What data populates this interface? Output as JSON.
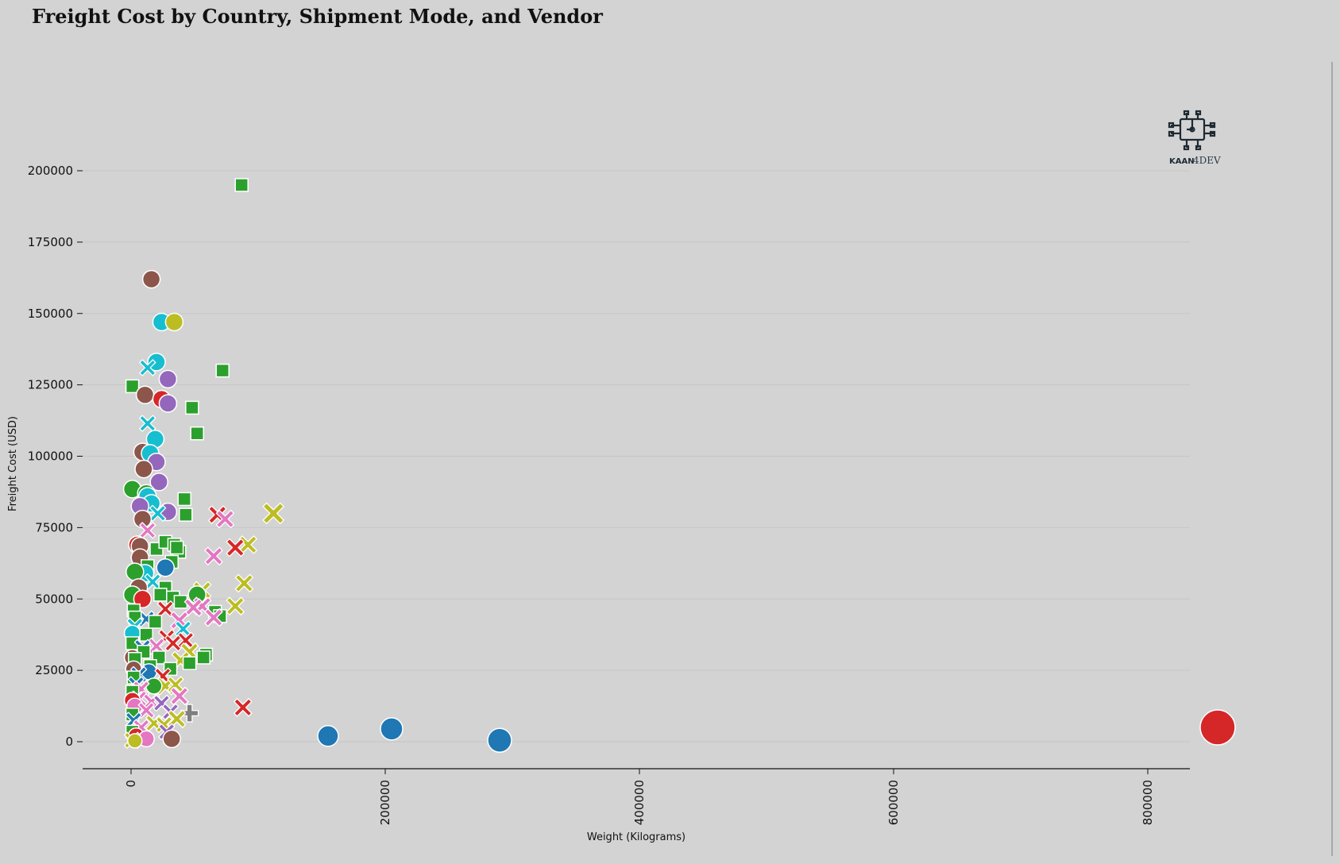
{
  "chart_data": {
    "type": "scatter",
    "title": "Freight Cost by Country, Shipment Mode, and Vendor",
    "xlabel": "Weight (Kilograms)",
    "ylabel": "Freight Cost (USD)",
    "xlim": [
      -20000,
      900000
    ],
    "ylim": [
      -9000,
      210000
    ],
    "x_ticks": [
      "0",
      "200000",
      "400000",
      "600000",
      "800000"
    ],
    "x_tick_values": [
      0,
      200000,
      400000,
      600000,
      800000
    ],
    "y_ticks": [
      "0",
      "25000",
      "50000",
      "75000",
      "100000",
      "125000",
      "150000",
      "175000",
      "200000"
    ],
    "y_tick_values": [
      0,
      25000,
      50000,
      75000,
      100000,
      125000,
      150000,
      175000,
      200000
    ],
    "grid": "horizontal",
    "legend": "none",
    "logo_text": [
      "KAAN",
      "4DEV"
    ],
    "colors": {
      "blue": "#1f77b4",
      "red": "#d62728",
      "green": "#2ca02c",
      "purple": "#9467bd",
      "brown": "#8c564b",
      "pink": "#e377c2",
      "gray": "#7f7f7f",
      "olive": "#bcbd22",
      "cyan": "#17becf"
    },
    "points": [
      {
        "x": 855000,
        "y": 5000,
        "c": "red",
        "m": "circle",
        "s": 22
      },
      {
        "x": 290000,
        "y": 500,
        "c": "blue",
        "m": "circle",
        "s": 15
      },
      {
        "x": 205000,
        "y": 4500,
        "c": "blue",
        "m": "circle",
        "s": 14
      },
      {
        "x": 155000,
        "y": 2000,
        "c": "blue",
        "m": "circle",
        "s": 13
      },
      {
        "x": 87000,
        "y": 195000,
        "c": "green",
        "m": "square",
        "s": 8
      },
      {
        "x": 16000,
        "y": 162000,
        "c": "brown",
        "m": "circle",
        "s": 11
      },
      {
        "x": 24000,
        "y": 147000,
        "c": "cyan",
        "m": "circle",
        "s": 11
      },
      {
        "x": 34000,
        "y": 147000,
        "c": "olive",
        "m": "circle",
        "s": 11
      },
      {
        "x": 72000,
        "y": 130000,
        "c": "green",
        "m": "square",
        "s": 8
      },
      {
        "x": 20000,
        "y": 133000,
        "c": "cyan",
        "m": "circle",
        "s": 11
      },
      {
        "x": 13000,
        "y": 131000,
        "c": "cyan",
        "m": "x",
        "s": 10
      },
      {
        "x": 29000,
        "y": 127000,
        "c": "purple",
        "m": "circle",
        "s": 11
      },
      {
        "x": 1000,
        "y": 124500,
        "c": "green",
        "m": "square",
        "s": 8
      },
      {
        "x": 11000,
        "y": 121500,
        "c": "brown",
        "m": "circle",
        "s": 11
      },
      {
        "x": 24000,
        "y": 120000,
        "c": "red",
        "m": "circle",
        "s": 11
      },
      {
        "x": 29000,
        "y": 118500,
        "c": "purple",
        "m": "circle",
        "s": 11
      },
      {
        "x": 48000,
        "y": 117000,
        "c": "green",
        "m": "square",
        "s": 8
      },
      {
        "x": 13000,
        "y": 111500,
        "c": "cyan",
        "m": "x",
        "s": 10
      },
      {
        "x": 52000,
        "y": 108000,
        "c": "green",
        "m": "square",
        "s": 8
      },
      {
        "x": 19000,
        "y": 106000,
        "c": "cyan",
        "m": "circle",
        "s": 11
      },
      {
        "x": 9000,
        "y": 101500,
        "c": "brown",
        "m": "circle",
        "s": 11
      },
      {
        "x": 15000,
        "y": 101000,
        "c": "cyan",
        "m": "circle",
        "s": 11
      },
      {
        "x": 20000,
        "y": 98000,
        "c": "purple",
        "m": "circle",
        "s": 11
      },
      {
        "x": 10000,
        "y": 95500,
        "c": "brown",
        "m": "circle",
        "s": 11
      },
      {
        "x": 22000,
        "y": 91000,
        "c": "purple",
        "m": "circle",
        "s": 11
      },
      {
        "x": 1000,
        "y": 88500,
        "c": "green",
        "m": "circle",
        "s": 11
      },
      {
        "x": 12000,
        "y": 87000,
        "c": "green",
        "m": "circle",
        "s": 11
      },
      {
        "x": 13000,
        "y": 86000,
        "c": "cyan",
        "m": "circle",
        "s": 11
      },
      {
        "x": 42000,
        "y": 85000,
        "c": "green",
        "m": "square",
        "s": 8
      },
      {
        "x": 16000,
        "y": 83500,
        "c": "cyan",
        "m": "circle",
        "s": 11
      },
      {
        "x": 7000,
        "y": 82500,
        "c": "purple",
        "m": "circle",
        "s": 11
      },
      {
        "x": 29000,
        "y": 80500,
        "c": "purple",
        "m": "circle",
        "s": 11
      },
      {
        "x": 21000,
        "y": 80000,
        "c": "cyan",
        "m": "x",
        "s": 10
      },
      {
        "x": 43000,
        "y": 79500,
        "c": "green",
        "m": "square",
        "s": 8
      },
      {
        "x": 68000,
        "y": 79500,
        "c": "red",
        "m": "x",
        "s": 11
      },
      {
        "x": 74000,
        "y": 78000,
        "c": "pink",
        "m": "x",
        "s": 11
      },
      {
        "x": 112000,
        "y": 80000,
        "c": "olive",
        "m": "x",
        "s": 13
      },
      {
        "x": 9000,
        "y": 78000,
        "c": "brown",
        "m": "circle",
        "s": 11
      },
      {
        "x": 13000,
        "y": 74000,
        "c": "pink",
        "m": "x",
        "s": 10
      },
      {
        "x": 92000,
        "y": 69000,
        "c": "olive",
        "m": "x",
        "s": 11
      },
      {
        "x": 82000,
        "y": 68000,
        "c": "red",
        "m": "x",
        "s": 11
      },
      {
        "x": 5000,
        "y": 69000,
        "c": "red",
        "m": "circle",
        "s": 11
      },
      {
        "x": 7000,
        "y": 68500,
        "c": "brown",
        "m": "circle",
        "s": 11
      },
      {
        "x": 20000,
        "y": 67500,
        "c": "green",
        "m": "square",
        "s": 8
      },
      {
        "x": 27000,
        "y": 70000,
        "c": "green",
        "m": "square",
        "s": 8
      },
      {
        "x": 34000,
        "y": 69000,
        "c": "green",
        "m": "square",
        "s": 8
      },
      {
        "x": 38000,
        "y": 66500,
        "c": "green",
        "m": "square",
        "s": 8
      },
      {
        "x": 36000,
        "y": 68000,
        "c": "green",
        "m": "square",
        "s": 8
      },
      {
        "x": 65000,
        "y": 65000,
        "c": "pink",
        "m": "x",
        "s": 11
      },
      {
        "x": 7000,
        "y": 64500,
        "c": "brown",
        "m": "circle",
        "s": 11
      },
      {
        "x": 32000,
        "y": 63000,
        "c": "green",
        "m": "square",
        "s": 8
      },
      {
        "x": 13000,
        "y": 61500,
        "c": "green",
        "m": "square",
        "s": 8
      },
      {
        "x": 27000,
        "y": 61000,
        "c": "blue",
        "m": "circle",
        "s": 11
      },
      {
        "x": 11000,
        "y": 59000,
        "c": "cyan",
        "m": "circle",
        "s": 11
      },
      {
        "x": 3000,
        "y": 59500,
        "c": "green",
        "m": "circle",
        "s": 11
      },
      {
        "x": 17000,
        "y": 56000,
        "c": "cyan",
        "m": "x",
        "s": 10
      },
      {
        "x": 89000,
        "y": 55500,
        "c": "olive",
        "m": "x",
        "s": 11
      },
      {
        "x": 6000,
        "y": 54000,
        "c": "brown",
        "m": "circle",
        "s": 11
      },
      {
        "x": 27000,
        "y": 54000,
        "c": "green",
        "m": "square",
        "s": 8
      },
      {
        "x": 56000,
        "y": 53000,
        "c": "olive",
        "m": "x",
        "s": 11
      },
      {
        "x": 23000,
        "y": 51500,
        "c": "green",
        "m": "square",
        "s": 8
      },
      {
        "x": 1000,
        "y": 51500,
        "c": "green",
        "m": "circle",
        "s": 11
      },
      {
        "x": 52000,
        "y": 51500,
        "c": "green",
        "m": "circle",
        "s": 11
      },
      {
        "x": 33000,
        "y": 50500,
        "c": "green",
        "m": "square",
        "s": 8
      },
      {
        "x": 9000,
        "y": 50000,
        "c": "red",
        "m": "circle",
        "s": 11
      },
      {
        "x": 39000,
        "y": 49000,
        "c": "green",
        "m": "square",
        "s": 8
      },
      {
        "x": 56000,
        "y": 47500,
        "c": "pink",
        "m": "x",
        "s": 11
      },
      {
        "x": 49000,
        "y": 47000,
        "c": "pink",
        "m": "x",
        "s": 11
      },
      {
        "x": 82000,
        "y": 47500,
        "c": "olive",
        "m": "x",
        "s": 11
      },
      {
        "x": 27000,
        "y": 46500,
        "c": "red",
        "m": "x",
        "s": 10
      },
      {
        "x": 2000,
        "y": 46000,
        "c": "green",
        "m": "square",
        "s": 8
      },
      {
        "x": 66000,
        "y": 45500,
        "c": "green",
        "m": "square",
        "s": 8
      },
      {
        "x": 70000,
        "y": 44000,
        "c": "green",
        "m": "square",
        "s": 8
      },
      {
        "x": 65000,
        "y": 43500,
        "c": "pink",
        "m": "x",
        "s": 11
      },
      {
        "x": 12000,
        "y": 43000,
        "c": "blue",
        "m": "x",
        "s": 10
      },
      {
        "x": 3000,
        "y": 43500,
        "c": "green",
        "m": "square",
        "s": 8
      },
      {
        "x": 38000,
        "y": 42500,
        "c": "pink",
        "m": "x",
        "s": 11
      },
      {
        "x": 19000,
        "y": 42000,
        "c": "green",
        "m": "square",
        "s": 8
      },
      {
        "x": 3000,
        "y": 40500,
        "c": "cyan",
        "m": "x",
        "s": 10
      },
      {
        "x": 41000,
        "y": 39500,
        "c": "cyan",
        "m": "x",
        "s": 10
      },
      {
        "x": 1000,
        "y": 38000,
        "c": "cyan",
        "m": "circle",
        "s": 10
      },
      {
        "x": 12000,
        "y": 37500,
        "c": "green",
        "m": "square",
        "s": 8
      },
      {
        "x": 28000,
        "y": 36500,
        "c": "red",
        "m": "x",
        "s": 10
      },
      {
        "x": 43000,
        "y": 35500,
        "c": "red",
        "m": "x",
        "s": 10
      },
      {
        "x": 33000,
        "y": 34500,
        "c": "red",
        "m": "x",
        "s": 10
      },
      {
        "x": 1000,
        "y": 34500,
        "c": "green",
        "m": "square",
        "s": 8
      },
      {
        "x": 20000,
        "y": 33500,
        "c": "pink",
        "m": "x",
        "s": 10
      },
      {
        "x": 9000,
        "y": 33000,
        "c": "blue",
        "m": "x",
        "s": 10
      },
      {
        "x": 46000,
        "y": 31500,
        "c": "olive",
        "m": "x",
        "s": 11
      },
      {
        "x": 10000,
        "y": 31500,
        "c": "green",
        "m": "square",
        "s": 8
      },
      {
        "x": 59000,
        "y": 30500,
        "c": "green",
        "m": "square",
        "s": 8
      },
      {
        "x": 57000,
        "y": 29500,
        "c": "green",
        "m": "square",
        "s": 8
      },
      {
        "x": 1000,
        "y": 29500,
        "c": "brown",
        "m": "circle",
        "s": 10
      },
      {
        "x": 22000,
        "y": 29500,
        "c": "green",
        "m": "square",
        "s": 8
      },
      {
        "x": 3000,
        "y": 29000,
        "c": "green",
        "m": "square",
        "s": 8
      },
      {
        "x": 39000,
        "y": 28500,
        "c": "olive",
        "m": "x",
        "s": 11
      },
      {
        "x": 46000,
        "y": 27500,
        "c": "green",
        "m": "square",
        "s": 8
      },
      {
        "x": 15000,
        "y": 26500,
        "c": "green",
        "m": "square",
        "s": 8
      },
      {
        "x": 2000,
        "y": 25500,
        "c": "brown",
        "m": "circle",
        "s": 10
      },
      {
        "x": 31000,
        "y": 25500,
        "c": "green",
        "m": "square",
        "s": 8
      },
      {
        "x": 14000,
        "y": 24500,
        "c": "blue",
        "m": "circle",
        "s": 10
      },
      {
        "x": 6000,
        "y": 23500,
        "c": "blue",
        "m": "x",
        "s": 10
      },
      {
        "x": 25000,
        "y": 23000,
        "c": "red",
        "m": "x",
        "s": 10
      },
      {
        "x": 2000,
        "y": 22500,
        "c": "green",
        "m": "square",
        "s": 8
      },
      {
        "x": 4000,
        "y": 20000,
        "c": "blue",
        "m": "x",
        "s": 10
      },
      {
        "x": 27000,
        "y": 19500,
        "c": "olive",
        "m": "x",
        "s": 11
      },
      {
        "x": 35000,
        "y": 20000,
        "c": "olive",
        "m": "x",
        "s": 10
      },
      {
        "x": 18000,
        "y": 19500,
        "c": "green",
        "m": "circle",
        "s": 10
      },
      {
        "x": 8000,
        "y": 18500,
        "c": "pink",
        "m": "x",
        "s": 10
      },
      {
        "x": 1000,
        "y": 17500,
        "c": "green",
        "m": "square",
        "s": 8
      },
      {
        "x": 38000,
        "y": 16000,
        "c": "pink",
        "m": "x",
        "s": 11
      },
      {
        "x": 6000,
        "y": 15000,
        "c": "pink",
        "m": "x",
        "s": 10
      },
      {
        "x": 1000,
        "y": 14500,
        "c": "red",
        "m": "circle",
        "s": 10
      },
      {
        "x": 16000,
        "y": 14000,
        "c": "pink",
        "m": "x",
        "s": 10
      },
      {
        "x": 24000,
        "y": 13500,
        "c": "purple",
        "m": "x",
        "s": 10
      },
      {
        "x": 3000,
        "y": 12500,
        "c": "pink",
        "m": "circle",
        "s": 10
      },
      {
        "x": 88000,
        "y": 12000,
        "c": "red",
        "m": "x",
        "s": 11
      },
      {
        "x": 12000,
        "y": 11000,
        "c": "pink",
        "m": "x",
        "s": 10
      },
      {
        "x": 31000,
        "y": 10500,
        "c": "purple",
        "m": "x",
        "s": 10
      },
      {
        "x": 46000,
        "y": 10000,
        "c": "gray",
        "m": "plus",
        "s": 11
      },
      {
        "x": 1000,
        "y": 9500,
        "c": "green",
        "m": "square",
        "s": 8
      },
      {
        "x": 36000,
        "y": 8000,
        "c": "olive",
        "m": "x",
        "s": 11
      },
      {
        "x": 2000,
        "y": 7500,
        "c": "blue",
        "m": "x",
        "s": 10
      },
      {
        "x": 18000,
        "y": 6500,
        "c": "olive",
        "m": "x",
        "s": 10
      },
      {
        "x": 26000,
        "y": 6000,
        "c": "olive",
        "m": "x",
        "s": 10
      },
      {
        "x": 8000,
        "y": 5000,
        "c": "pink",
        "m": "x",
        "s": 10
      },
      {
        "x": 1000,
        "y": 3500,
        "c": "green",
        "m": "square",
        "s": 8
      },
      {
        "x": 28000,
        "y": 3500,
        "c": "purple",
        "m": "x",
        "s": 10
      },
      {
        "x": 4000,
        "y": 2000,
        "c": "red",
        "m": "circle",
        "s": 10
      },
      {
        "x": 12000,
        "y": 1000,
        "c": "pink",
        "m": "circle",
        "s": 10
      },
      {
        "x": 32000,
        "y": 1000,
        "c": "brown",
        "m": "circle",
        "s": 11
      },
      {
        "x": 1000,
        "y": 500,
        "c": "olive",
        "m": "x",
        "s": 10
      },
      {
        "x": 3000,
        "y": 300,
        "c": "olive",
        "m": "circle",
        "s": 9
      }
    ]
  }
}
